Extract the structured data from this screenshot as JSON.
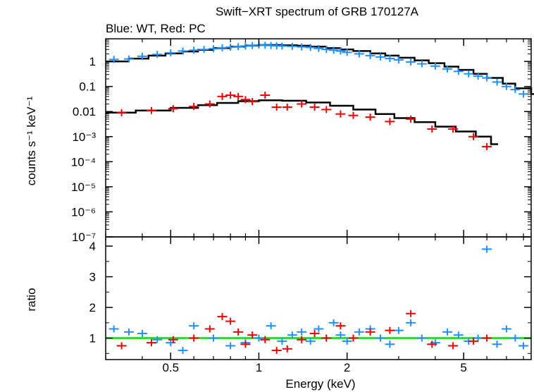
{
  "chart_data": [
    {
      "type": "scatter",
      "panel": "spectrum",
      "title": "Swift−XRT spectrum of GRB 170127A",
      "subtitle": "Blue: WT, Red: PC",
      "xlabel": "Energy (keV)",
      "ylabel": "counts s⁻¹ keV⁻¹",
      "x_scale": "log",
      "y_scale": "log",
      "xlim": [
        0.3,
        8.5
      ],
      "ylim": [
        1e-07,
        8
      ],
      "ytick_labels": [
        "1",
        "0.1",
        "0.01",
        "10⁻³",
        "10⁻⁴",
        "10⁻⁵",
        "10⁻⁶",
        "10⁻⁷"
      ],
      "series": [
        {
          "color": "#1e90ff",
          "x": [
            0.32,
            0.36,
            0.4,
            0.45,
            0.5,
            0.55,
            0.6,
            0.65,
            0.7,
            0.75,
            0.8,
            0.85,
            0.9,
            0.95,
            1.0,
            1.05,
            1.1,
            1.15,
            1.2,
            1.3,
            1.4,
            1.5,
            1.6,
            1.7,
            1.8,
            1.9,
            2.0,
            2.2,
            2.4,
            2.6,
            2.8,
            3.0,
            3.3,
            3.6,
            4.0,
            4.4,
            4.8,
            5.2,
            5.6,
            6.0,
            6.5,
            7.0,
            7.5,
            8.0
          ],
          "y": [
            1.2,
            1.25,
            1.6,
            1.9,
            2.2,
            2.6,
            2.8,
            3.0,
            3.2,
            3.5,
            3.7,
            3.9,
            4.1,
            4.3,
            4.5,
            4.4,
            4.3,
            4.2,
            4.1,
            4.0,
            3.8,
            3.6,
            3.3,
            3.0,
            2.8,
            2.6,
            2.3,
            2.0,
            1.7,
            1.5,
            1.3,
            1.15,
            0.95,
            0.8,
            0.65,
            0.5,
            0.4,
            0.32,
            0.26,
            0.22,
            0.15,
            0.1,
            0.075,
            0.05
          ]
        },
        {
          "color": "#ee0000",
          "x": [
            0.34,
            0.43,
            0.51,
            0.6,
            0.68,
            0.75,
            0.8,
            0.85,
            0.9,
            0.95,
            1.05,
            1.15,
            1.25,
            1.4,
            1.55,
            1.7,
            1.9,
            2.1,
            2.4,
            2.8,
            3.3,
            3.9,
            4.6,
            5.4,
            6.0
          ],
          "y": [
            0.009,
            0.011,
            0.013,
            0.016,
            0.02,
            0.04,
            0.045,
            0.04,
            0.03,
            0.025,
            0.045,
            0.015,
            0.015,
            0.02,
            0.015,
            0.012,
            0.008,
            0.007,
            0.006,
            0.004,
            0.005,
            0.002,
            0.002,
            0.001,
            0.0004
          ]
        }
      ],
      "model": {
        "color": "#000000",
        "x": [
          0.3,
          0.36,
          0.42,
          0.48,
          0.55,
          0.62,
          0.7,
          0.8,
          0.9,
          1.0,
          1.1,
          1.2,
          1.35,
          1.5,
          1.7,
          1.9,
          2.1,
          2.4,
          2.7,
          3.0,
          3.4,
          3.8,
          4.3,
          4.8,
          5.4,
          6.0,
          6.8,
          7.5,
          8.5
        ],
        "y": [
          1.0,
          1.3,
          1.7,
          2.1,
          2.5,
          2.9,
          3.4,
          3.9,
          4.3,
          4.5,
          4.5,
          4.4,
          4.2,
          3.9,
          3.4,
          3.0,
          2.6,
          2.1,
          1.7,
          1.4,
          1.1,
          0.85,
          0.62,
          0.46,
          0.32,
          0.22,
          0.13,
          0.085,
          0.05
        ]
      },
      "model_pc": {
        "color": "#000000",
        "x": [
          0.3,
          0.38,
          0.5,
          0.62,
          0.72,
          0.85,
          1.0,
          1.2,
          1.45,
          1.75,
          2.1,
          2.5,
          2.9,
          3.4,
          4.0,
          4.7,
          5.5,
          6.2
        ],
        "y": [
          0.009,
          0.011,
          0.014,
          0.018,
          0.022,
          0.026,
          0.028,
          0.027,
          0.023,
          0.017,
          0.012,
          0.008,
          0.0055,
          0.0038,
          0.0025,
          0.0016,
          0.001,
          0.0005
        ]
      }
    },
    {
      "type": "scatter",
      "panel": "ratio",
      "xlabel": "Energy (keV)",
      "ylabel": "ratio",
      "x_scale": "log",
      "xlim": [
        0.3,
        8.5
      ],
      "ylim": [
        0.3,
        4.3
      ],
      "xtick_labels": [
        "0.5",
        "1",
        "2",
        "5"
      ],
      "ytick_labels": [
        "1",
        "2",
        "3",
        "4"
      ],
      "series": [
        {
          "color": "#1e90ff",
          "x": [
            0.32,
            0.36,
            0.4,
            0.45,
            0.5,
            0.55,
            0.6,
            0.7,
            0.8,
            0.9,
            1.0,
            1.1,
            1.2,
            1.3,
            1.4,
            1.5,
            1.6,
            1.7,
            1.8,
            1.9,
            2.0,
            2.2,
            2.4,
            2.6,
            2.8,
            3.0,
            3.3,
            3.6,
            4.0,
            4.4,
            4.8,
            5.2,
            5.6,
            6.0,
            6.5,
            7.0,
            7.5,
            8.0
          ],
          "y": [
            1.3,
            1.2,
            1.15,
            0.95,
            0.85,
            0.6,
            1.4,
            1.0,
            0.75,
            0.85,
            1.0,
            1.4,
            0.9,
            1.1,
            1.2,
            0.9,
            1.3,
            1.0,
            1.5,
            1.1,
            0.9,
            1.2,
            1.3,
            1.0,
            0.8,
            1.25,
            1.5,
            1.0,
            0.85,
            1.2,
            1.1,
            0.9,
            1.0,
            3.9,
            0.8,
            1.3,
            1.0,
            0.75
          ]
        },
        {
          "color": "#ee0000",
          "x": [
            0.34,
            0.43,
            0.51,
            0.6,
            0.68,
            0.75,
            0.8,
            0.85,
            0.9,
            0.95,
            1.05,
            1.15,
            1.25,
            1.4,
            1.55,
            1.7,
            1.9,
            2.1,
            2.4,
            2.8,
            3.3,
            3.9,
            4.6,
            5.4,
            6.0
          ],
          "y": [
            0.75,
            0.85,
            0.95,
            1.0,
            1.3,
            1.7,
            1.55,
            1.2,
            0.8,
            1.1,
            0.95,
            0.6,
            0.65,
            0.95,
            1.15,
            1.0,
            1.4,
            1.0,
            1.2,
            1.25,
            1.8,
            0.8,
            0.75,
            0.9,
            1.0
          ]
        }
      ],
      "reference_line": {
        "y": 1.0,
        "color": "#00dd00"
      }
    }
  ]
}
